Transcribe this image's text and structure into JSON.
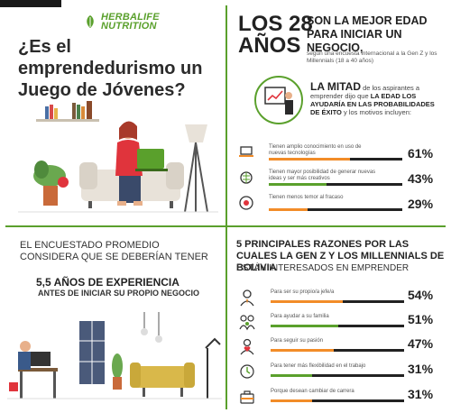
{
  "brand": {
    "line1": "HERBALIFE",
    "line2": "NUTRITION"
  },
  "question": {
    "title": "¿Es el emprendedurismo un Juego de Jóvenes?"
  },
  "headline": {
    "number_line1": "LOS 28",
    "number_line2": "AÑOS",
    "subtitle": "SON LA MEJOR EDAD PARA INICIAR UN NEGOCIO,",
    "survey": "según una encuesta internacional a la Gen Z y los Millennials (18 a 40 años)"
  },
  "mitad": {
    "big": "LA MITAD",
    "text1": " de los aspirantes a emprender dijo que ",
    "bold": "LA EDAD LOS AYUDARÍA EN LAS PROBABILIDADES DE ÉXITO",
    "text2": " y los motivos incluyen:"
  },
  "stats": [
    {
      "label": "Tienen amplio conocimiento en uso de nuevas tecnologías",
      "percent": "61%",
      "value": 61,
      "color": "#f28c28",
      "icon": "laptop-icon"
    },
    {
      "label": "Tienen mayor posibilidad de generar nuevas ideas y ser más creativos",
      "percent": "43%",
      "value": 43,
      "color": "#5aa02c",
      "icon": "brain-icon"
    },
    {
      "label": "Tienen menos temor al fracaso",
      "percent": "29%",
      "value": 29,
      "color": "#f28c28",
      "icon": "target-icon"
    }
  ],
  "encuestado": {
    "line1": "EL ENCUESTADO PROMEDIO CONSIDERA QUE SE DEBERÍAN TENER",
    "years": "5,5 AÑOS DE EXPERIENCIA",
    "line3": "ANTES DE INICIAR SU PROPIO NEGOCIO"
  },
  "reasons": {
    "title": "5 PRINCIPALES RAZONES POR LAS CUALES LA GEN Z Y LOS MILLENNIALS DE BOLIVIA",
    "subtitle": "ESTÁN INTERESADOS EN EMPRENDER",
    "items": [
      {
        "label": "Para ser su propio/a jefe/a",
        "percent": "54%",
        "value": 54,
        "color": "#f28c28",
        "icon": "boss-icon"
      },
      {
        "label": "Para ayudar a su familia",
        "percent": "51%",
        "value": 51,
        "color": "#5aa02c",
        "icon": "family-icon"
      },
      {
        "label": "Para seguir su pasión",
        "percent": "47%",
        "value": 47,
        "color": "#f28c28",
        "icon": "heart-person-icon"
      },
      {
        "label": "Para tener más flexibilidad en el trabajo",
        "percent": "31%",
        "value": 31,
        "color": "#5aa02c",
        "icon": "clock-person-icon"
      },
      {
        "label": "Porque desean cambiar de carrera",
        "percent": "31%",
        "value": 31,
        "color": "#f28c28",
        "icon": "career-icon"
      }
    ]
  },
  "colors": {
    "green": "#5aa02c",
    "orange": "#f28c28",
    "red": "#e0343c"
  }
}
